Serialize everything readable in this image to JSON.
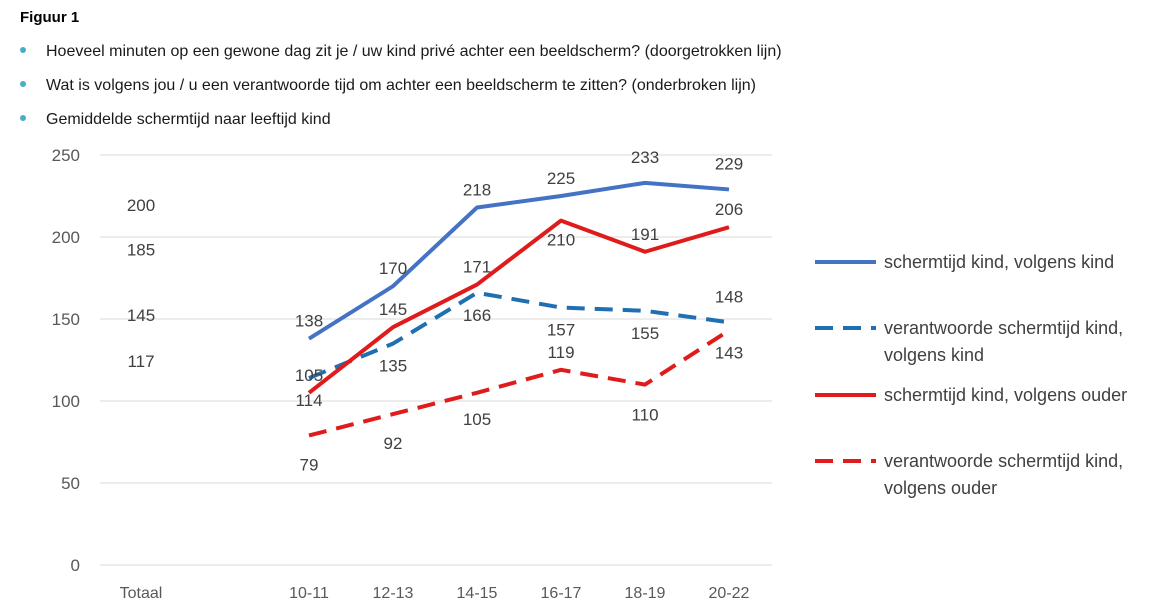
{
  "figure": {
    "title": "Figuur 1",
    "questions": [
      "Hoeveel minuten op een gewone dag zit je / uw kind privé achter een beeldscherm? (doorgetrokken lijn)",
      "Wat is volgens jou / u een verantwoorde tijd om achter een beeldscherm te zitten? (onderbroken lijn)",
      "Gemiddelde schermtijd naar leeftijd kind"
    ]
  },
  "colors": {
    "blue": "#4472c4",
    "blue_dash": "#1f6fb2",
    "red": "#e01b1b",
    "grid": "#d9d9d9",
    "bullet": "#4bacc6"
  },
  "chart_data": {
    "type": "line",
    "categories": [
      "Totaal",
      "10-11",
      "12-13",
      "14-15",
      "16-17",
      "18-19",
      "20-22"
    ],
    "ylim": [
      0,
      250
    ],
    "yticks": [
      0,
      50,
      100,
      150,
      200,
      250
    ],
    "grid": true,
    "legend_position": "right",
    "series": [
      {
        "name": "schermtijd kind, volgens kind",
        "values": [
          200,
          138,
          170,
          218,
          225,
          233,
          229
        ],
        "line": "solid",
        "color": "#4472c4"
      },
      {
        "name": "verantwoorde schermtijd kind, volgens kind",
        "values": [
          145,
          114,
          135,
          166,
          157,
          155,
          148
        ],
        "line": "dashed",
        "color": "#1f6fb2"
      },
      {
        "name": "schermtijd kind, volgens ouder",
        "values": [
          185,
          105,
          145,
          171,
          210,
          191,
          206
        ],
        "line": "solid",
        "color": "#e01b1b"
      },
      {
        "name": "verantwoorde schermtijd kind, volgens ouder",
        "values": [
          117,
          79,
          92,
          105,
          119,
          110,
          143
        ],
        "line": "dashed",
        "color": "#e01b1b"
      }
    ]
  }
}
